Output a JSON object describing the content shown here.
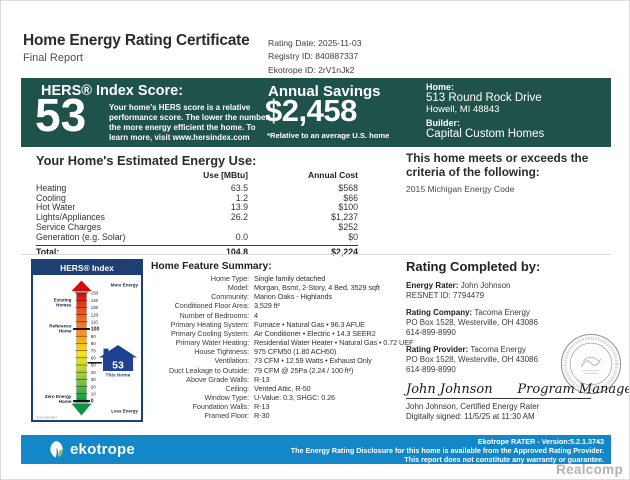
{
  "header": {
    "title": "Home Energy Rating Certificate",
    "subtitle": "Final Report",
    "meta": [
      "Rating Date: 2025-11-03",
      "Registry ID: 840887337",
      "Ekotrope ID: 2rV1nJk2"
    ]
  },
  "banner": {
    "hers": {
      "heading": "HERS® Index Score:",
      "score": "53",
      "description": "Your home's HERS score is a relative performance score. The lower the number, the more energy efficient the home. To learn more, visit www.hersindex.com"
    },
    "savings": {
      "heading": "Annual Savings",
      "amount": "$2,458",
      "note": "*Relative to an average U.S. home"
    },
    "home": {
      "home_label": "Home:",
      "address_line1": "513 Round Rock Drive",
      "address_line2": "Howell, MI 48843",
      "builder_label": "Builder:",
      "builder_name": "Capital Custom Homes"
    }
  },
  "energy_use": {
    "heading": "Your Home's Estimated Energy Use:",
    "columns": [
      "Use [MBtu]",
      "Annual Cost"
    ],
    "rows": [
      {
        "label": "Heating",
        "use": "63.5",
        "cost": "$568"
      },
      {
        "label": "Cooling",
        "use": "1.2",
        "cost": "$66"
      },
      {
        "label": "Hot Water",
        "use": "13.9",
        "cost": "$100"
      },
      {
        "label": "Lights/Appliances",
        "use": "26.2",
        "cost": "$1,237"
      },
      {
        "label": "Service Charges",
        "use": "",
        "cost": "$252"
      },
      {
        "label": "Generation (e.g. Solar)",
        "use": "0.0",
        "cost": "$0"
      }
    ],
    "total": {
      "label": "Total:",
      "use": "104.8",
      "cost": "$2,224"
    }
  },
  "criteria": {
    "heading": "This home meets or exceeds the criteria of the following:",
    "items": [
      "2015 Michigan Energy Code"
    ]
  },
  "gauge": {
    "title": "HERS® Index",
    "top_label": "More Energy",
    "bottom_label": "Less Energy",
    "ticks": [
      150,
      140,
      130,
      120,
      110,
      100,
      90,
      80,
      70,
      60,
      50,
      40,
      30,
      20,
      10,
      0
    ],
    "left_labels": [
      {
        "lines": [
          "Existing",
          "Homes"
        ],
        "value": 137
      },
      {
        "lines": [
          "Reference",
          "Home"
        ],
        "value": 101
      },
      {
        "lines": [
          "Zero Energy",
          "Home"
        ],
        "value": 3
      }
    ],
    "this_home": {
      "value": 53,
      "label": "This Home"
    },
    "copyright": "©2012 RESNET"
  },
  "features": {
    "heading": "Home Feature Summary:",
    "rows": [
      {
        "label": "Home Type:",
        "value": "Single family detached"
      },
      {
        "label": "Model:",
        "value": "Morgan, Bsmt, 2-Story, 4 Bed, 3529 sqft"
      },
      {
        "label": "Community:",
        "value": "Marion Oaks - Highlands"
      },
      {
        "label": "Conditioned Floor Area:",
        "value": "3,529 ft²"
      },
      {
        "label": "Number of Bedrooms:",
        "value": "4"
      },
      {
        "label": "Primary Heating System:",
        "value": "Furnace • Natural Gas • 96.3 AFUE"
      },
      {
        "label": "Primary Cooling System:",
        "value": "Air Conditioner • Electric • 14.3 SEER2"
      },
      {
        "label": "Primary Water Heating:",
        "value": "Residential Water Heater • Natural Gas • 0.72 UEF"
      },
      {
        "label": "House Tightness:",
        "value": "975 CFM50 (1.80 ACH50)"
      },
      {
        "label": "Ventilation:",
        "value": "73 CFM • 12.59 Watts • Exhaust Only"
      },
      {
        "label": "Duct Leakage to Outside:",
        "value": "79 CFM @ 25Pa (2.24 / 100 ft²)"
      },
      {
        "label": "Above Grade Walls:",
        "value": "R-13"
      },
      {
        "label": "Ceiling:",
        "value": "Vented Attic, R-50"
      },
      {
        "label": "Window Type:",
        "value": "U-Value: 0.3, SHGC: 0.26"
      },
      {
        "label": "Foundation Walls:",
        "value": "R-13"
      },
      {
        "label": "Framed Floor:",
        "value": "R-30"
      }
    ]
  },
  "rating": {
    "heading": "Rating Completed by:",
    "blocks": [
      {
        "label": "Energy Rater:",
        "value": "John Johnson",
        "lines": [
          "RESNET ID: 7794479"
        ]
      },
      {
        "label": "Rating Company:",
        "value": "Tacoma Energy",
        "lines": [
          "PO Box 1528, Westerville, OH 43086",
          "614-899-8990"
        ]
      },
      {
        "label": "Rating Provider:",
        "value": "Tacoma Energy",
        "lines": [
          "PO Box 1528, Westerville, OH 43086",
          "614-899-8990"
        ]
      }
    ],
    "signature_script": "John Johnson      Program Manager",
    "signature_name": "John Johnson, Certified Energy Rater",
    "signature_date": "Digitally signed: 11/5/25 at 11:30 AM"
  },
  "footer": {
    "brand": "ekotrope",
    "lines": [
      "Ekotrope RATER - Version:5.2.1.3743",
      "The Energy Rating Disclosure for this home is available from the Approved Rating Provider.",
      "This report does not constitute any warranty or guarantee."
    ]
  },
  "watermark": "Realcomp",
  "colors": {
    "banner_teal": "#1f524a",
    "footer_blue": "#1487c9",
    "gauge_navy": "#1e3f74",
    "house_blue": "#1e4191",
    "brand_green": "#8dc63f"
  }
}
